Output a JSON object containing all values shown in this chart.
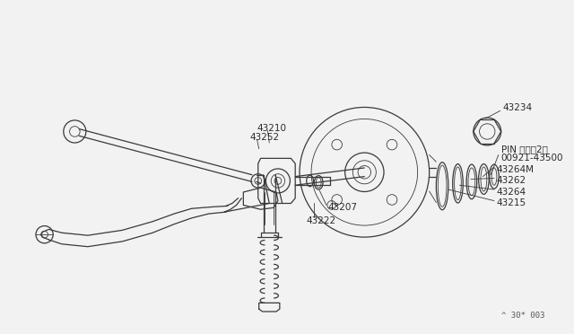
{
  "bg_color": "#f2f2f2",
  "line_color": "#3a3a3a",
  "text_color": "#2a2a2a",
  "fig_width": 6.4,
  "fig_height": 3.72,
  "dpi": 100,
  "watermark": "^ 30* 003"
}
